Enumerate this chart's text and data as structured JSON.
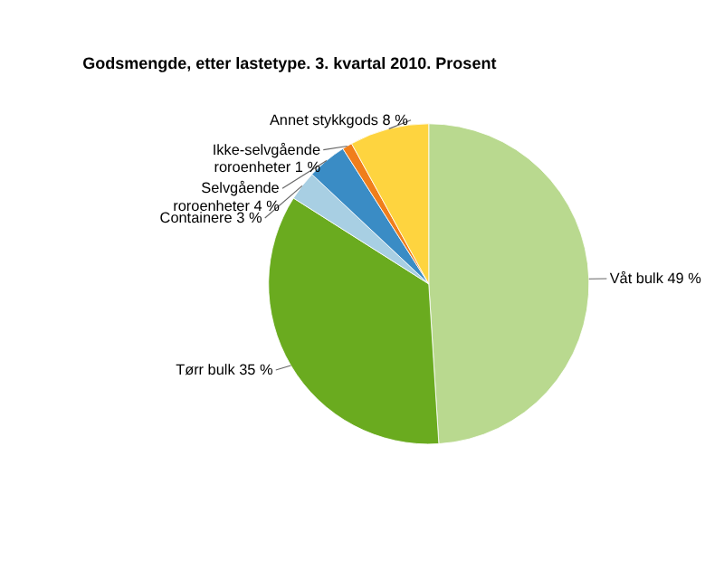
{
  "chart_data": {
    "type": "pie",
    "title": "Godsmengde, etter lastetype. 3. kvartal 2010. Prosent",
    "categories": [
      "Våt bulk",
      "Tørr bulk",
      "Containere",
      "Selvgående roroenheter",
      "Ikke-selvgående roroenheter",
      "Annet stykkgods"
    ],
    "values": [
      49,
      35,
      3,
      4,
      1,
      8
    ],
    "value_labels": [
      "49 %",
      "35 %",
      "3 %",
      "4 %",
      "1 %",
      "8 %"
    ],
    "colors": [
      "#b9d98f",
      "#6aab1f",
      "#a8cfe3",
      "#3a8cc5",
      "#f07e1b",
      "#fed43f"
    ],
    "legend": false
  }
}
